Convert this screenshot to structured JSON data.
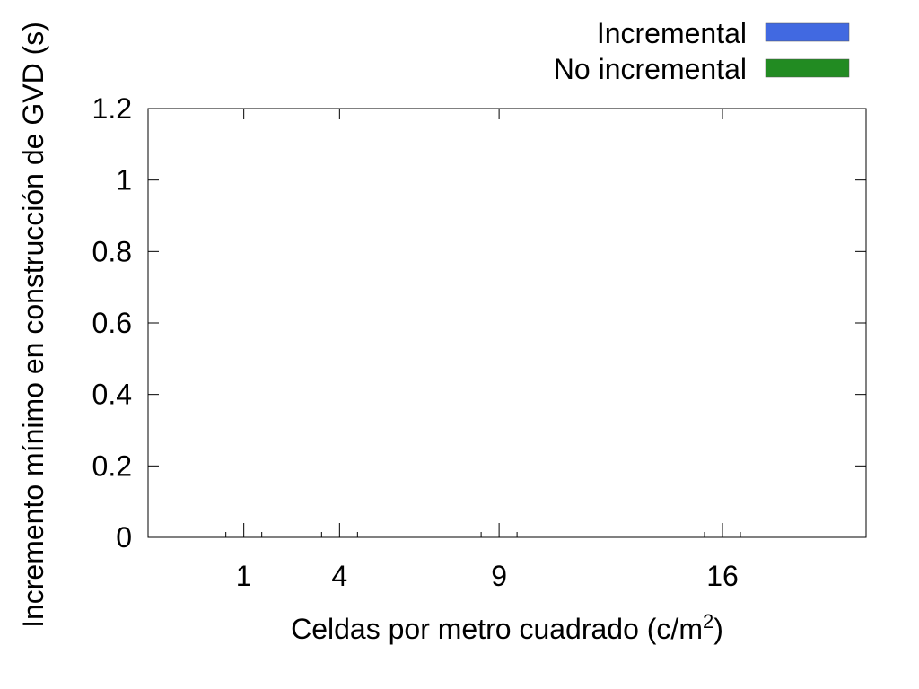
{
  "chart_data": {
    "type": "bar",
    "xlabel_prefix": "Celdas por metro cuadrado (c/m",
    "xlabel_exp": "2",
    "xlabel_suffix": ")",
    "ylabel": "Incremento mínimo en construcción de GVD (s)",
    "categories": [
      1,
      4,
      9,
      16
    ],
    "xlim": [
      -2,
      20.5
    ],
    "ylim": [
      0,
      1.2
    ],
    "yticks": [
      0,
      0.2,
      0.4,
      0.6,
      0.8,
      1,
      1.2
    ],
    "ytick_labels": [
      "0",
      "0.2",
      "0.4",
      "0.6",
      "0.8",
      "1",
      "1.2"
    ],
    "series": [
      {
        "name": "Incremental",
        "color": "#4169e1",
        "values": [
          0,
          0,
          0,
          0
        ]
      },
      {
        "name": "No incremental",
        "color": "#228b22",
        "values": [
          0,
          0,
          0,
          0
        ]
      }
    ],
    "grid": false,
    "legend_position": "top-right"
  }
}
